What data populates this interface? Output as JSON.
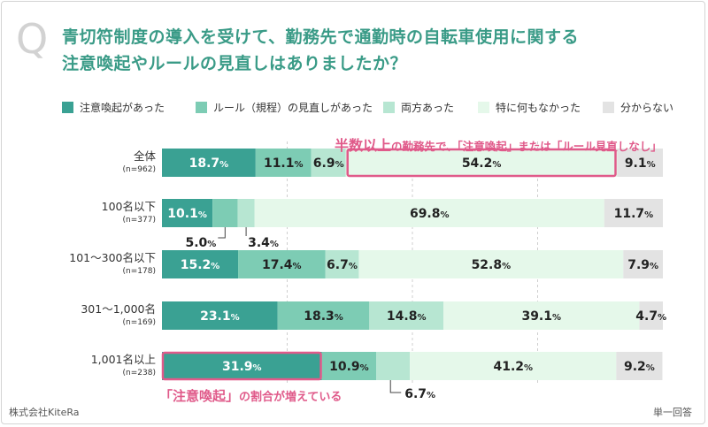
{
  "title": {
    "q": "Q",
    "line1": "青切符制度の導入を受けて、勤務先で通勤時の自転車使用に関する",
    "line2": "注意喚起やルールの見直しはありましたか？"
  },
  "colors": {
    "s1": "#3aa193",
    "s2": "#7dccb4",
    "s3": "#b7e6d2",
    "s4": "#e5f8ea",
    "s5": "#e3e3e3",
    "highlight": "#e05a8a",
    "title": "#3a9b87"
  },
  "callout": {
    "prefix": "半数以上",
    "rest": "の勤務先で、「注意喚起」または「ルール見直しなし」"
  },
  "bottom_note": {
    "big": "「注意喚起」",
    "rest": "の割合が増えている"
  },
  "footer": {
    "company": "株式会社KiteRa",
    "answer_type": "単一回答"
  },
  "chart_data": {
    "type": "bar",
    "orientation": "horizontal",
    "stacked": true,
    "xlim": [
      0,
      100
    ],
    "grid": true,
    "legend_position": "top",
    "categories": [
      {
        "name": "全体",
        "n": "(n=962)"
      },
      {
        "name": "100名以下",
        "n": "(n=377)"
      },
      {
        "name": "101～300名以下",
        "n": "(n=178)"
      },
      {
        "name": "301～1,000名",
        "n": "(n=169)"
      },
      {
        "name": "1,001名以上",
        "n": "(n=238)"
      }
    ],
    "series": [
      {
        "name": "注意喚起があった",
        "values": [
          18.7,
          10.1,
          15.2,
          23.1,
          31.9
        ]
      },
      {
        "name": "ルール（規程）の見直しがあった",
        "values": [
          11.1,
          5.0,
          17.4,
          18.3,
          10.9
        ]
      },
      {
        "name": "両方あった",
        "values": [
          6.9,
          3.4,
          6.7,
          14.8,
          6.7
        ]
      },
      {
        "name": "特に何もなかった",
        "values": [
          54.2,
          69.8,
          52.8,
          39.1,
          41.2
        ]
      },
      {
        "name": "分からない",
        "values": [
          9.1,
          11.7,
          7.9,
          4.7,
          9.2
        ]
      }
    ],
    "value_suffix": "%"
  }
}
